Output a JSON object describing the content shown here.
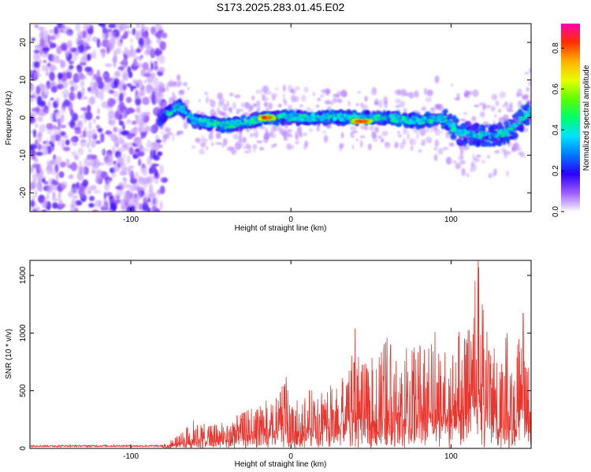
{
  "title": "S173.2025.283.01.45.E02",
  "chart_data": [
    {
      "type": "heatmap",
      "xlabel": "Height of straight line (km)",
      "ylabel": "Frequency (Hz)",
      "xlim": [
        -163,
        150
      ],
      "ylim": [
        -25,
        25
      ],
      "xticks": [
        -100,
        0,
        100
      ],
      "yticks": [
        -20,
        -10,
        0,
        10,
        20
      ],
      "grid": false,
      "colorbar": {
        "label": "Normalized spectral amplitude",
        "range": [
          0,
          0.92
        ],
        "ticks": [
          0.0,
          0.2,
          0.4,
          0.6,
          0.8
        ]
      },
      "features": {
        "noise_region_x": [
          -163,
          -79
        ],
        "signal_track": [
          [
            -82,
            0
          ],
          [
            -70,
            3
          ],
          [
            -60,
            -1
          ],
          [
            -40,
            -2
          ],
          [
            -25,
            -1
          ],
          [
            -15,
            0
          ],
          [
            0,
            0
          ],
          [
            20,
            0
          ],
          [
            45,
            0
          ],
          [
            60,
            0
          ],
          [
            80,
            -1
          ],
          [
            95,
            0
          ],
          [
            105,
            -4
          ],
          [
            120,
            -5
          ],
          [
            135,
            -4
          ],
          [
            150,
            2
          ]
        ],
        "peak_regions": [
          {
            "x": [
              -20,
              -10
            ],
            "y": 0,
            "amplitude": 0.9
          },
          {
            "x": [
              38,
              50
            ],
            "y": -1,
            "amplitude": 0.9
          }
        ]
      }
    },
    {
      "type": "line",
      "xlabel": "Height of straight line (km)",
      "ylabel": "SNR (10 * v/v)",
      "xlim": [
        -163,
        150
      ],
      "ylim": [
        0,
        1630
      ],
      "xticks": [
        -100,
        0,
        100
      ],
      "yticks": [
        0,
        500,
        1000,
        1500
      ],
      "grid": false,
      "series": [
        {
          "name": "SNR",
          "color": "#e8362f",
          "envelope": [
            [
              -163,
              30
            ],
            [
              -80,
              30
            ],
            [
              -70,
              120
            ],
            [
              -60,
              260
            ],
            [
              -50,
              200
            ],
            [
              -40,
              250
            ],
            [
              -30,
              310
            ],
            [
              -20,
              420
            ],
            [
              -10,
              420
            ],
            [
              -3,
              620
            ],
            [
              0,
              380
            ],
            [
              10,
              500
            ],
            [
              20,
              540
            ],
            [
              28,
              560
            ],
            [
              35,
              760
            ],
            [
              40,
              1040
            ],
            [
              45,
              720
            ],
            [
              55,
              860
            ],
            [
              60,
              960
            ],
            [
              70,
              870
            ],
            [
              80,
              900
            ],
            [
              90,
              1010
            ],
            [
              100,
              840
            ],
            [
              105,
              1010
            ],
            [
              110,
              960
            ],
            [
              115,
              1450
            ],
            [
              117,
              1630
            ],
            [
              120,
              1200
            ],
            [
              125,
              960
            ],
            [
              130,
              780
            ],
            [
              135,
              1000
            ],
            [
              140,
              800
            ],
            [
              145,
              1170
            ],
            [
              150,
              600
            ]
          ],
          "spikes": [
            [
              -3,
              620
            ],
            [
              40,
              1040
            ],
            [
              60,
              960
            ],
            [
              90,
              1010
            ],
            [
              105,
              1010
            ],
            [
              115,
              1450
            ],
            [
              117,
              1630
            ],
            [
              120,
              1200
            ],
            [
              135,
              1000
            ],
            [
              145,
              1170
            ]
          ]
        }
      ]
    }
  ]
}
